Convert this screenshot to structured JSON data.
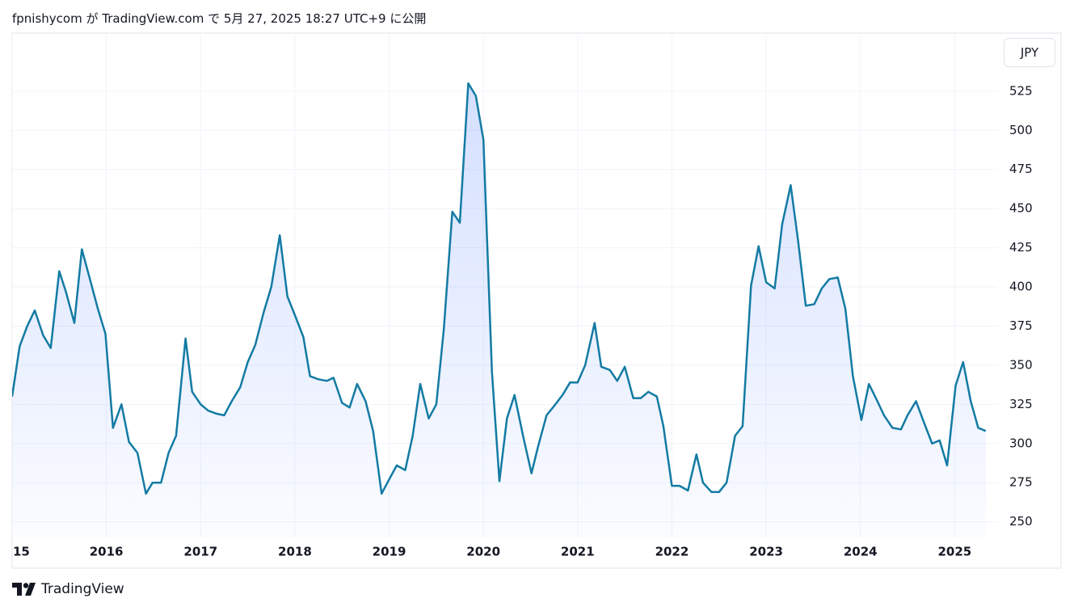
{
  "title": "fpnishycom が TradingView.com で 5月 27, 2025 18:27 UTC+9 に公開",
  "brand": "TradingView",
  "chart_data": {
    "type": "line",
    "currency": "JPY",
    "color": "#137ba3",
    "area": true,
    "grid": true,
    "x": [
      2015.0,
      2015.08,
      2015.16,
      2015.24,
      2015.33,
      2015.41,
      2015.5,
      2015.57,
      2015.66,
      2015.74,
      2015.83,
      2015.91,
      2015.99,
      2016.07,
      2016.16,
      2016.24,
      2016.33,
      2016.42,
      2016.49,
      2016.58,
      2016.66,
      2016.74,
      2016.84,
      2016.91,
      2017.0,
      2017.08,
      2017.17,
      2017.25,
      2017.33,
      2017.42,
      2017.5,
      2017.58,
      2017.67,
      2017.75,
      2017.84,
      2017.92,
      2018.0,
      2018.09,
      2018.16,
      2018.25,
      2018.34,
      2018.41,
      2018.5,
      2018.58,
      2018.66,
      2018.75,
      2018.83,
      2018.92,
      2019.0,
      2019.08,
      2019.17,
      2019.25,
      2019.33,
      2019.42,
      2019.5,
      2019.58,
      2019.67,
      2019.75,
      2019.84,
      2019.92,
      2020.0,
      2020.09,
      2020.17,
      2020.25,
      2020.33,
      2020.42,
      2020.51,
      2020.58,
      2020.67,
      2020.75,
      2020.84,
      2020.92,
      2021.0,
      2021.08,
      2021.18,
      2021.25,
      2021.34,
      2021.42,
      2021.5,
      2021.59,
      2021.67,
      2021.75,
      2021.84,
      2021.91,
      2022.0,
      2022.08,
      2022.17,
      2022.26,
      2022.33,
      2022.42,
      2022.5,
      2022.58,
      2022.67,
      2022.75,
      2022.84,
      2022.92,
      2023.0,
      2023.09,
      2023.17,
      2023.26,
      2023.34,
      2023.42,
      2023.51,
      2023.59,
      2023.67,
      2023.76,
      2023.84,
      2023.92,
      2024.01,
      2024.09,
      2024.18,
      2024.25,
      2024.34,
      2024.43,
      2024.5,
      2024.59,
      2024.67,
      2024.76,
      2024.84,
      2024.92,
      2025.01,
      2025.09,
      2025.17,
      2025.25,
      2025.33
    ],
    "values": [
      330,
      362,
      375,
      385,
      369,
      361,
      410,
      397,
      377,
      424,
      404,
      386,
      370,
      310,
      325,
      301,
      294,
      268,
      275,
      275,
      294,
      305,
      367,
      333,
      325,
      321,
      319,
      318,
      327,
      336,
      352,
      363,
      384,
      400,
      433,
      394,
      382,
      368,
      343,
      341,
      340,
      342,
      326,
      323,
      338,
      327,
      308,
      268,
      277,
      286,
      283,
      305,
      338,
      316,
      325,
      373,
      448,
      441,
      530,
      522,
      494,
      346,
      276,
      316,
      331,
      305,
      281,
      298,
      318,
      324,
      331,
      339,
      339,
      350,
      377,
      349,
      347,
      340,
      349,
      329,
      329,
      333,
      330,
      311,
      273,
      273,
      270,
      293,
      275,
      269,
      269,
      275,
      305,
      311,
      401,
      426,
      403,
      399,
      440,
      465,
      429,
      388,
      389,
      399,
      405,
      406,
      386,
      343,
      315,
      338,
      327,
      318,
      310,
      309,
      318,
      327,
      314,
      300,
      302,
      286,
      337,
      352,
      327,
      310,
      308
    ],
    "xlim": [
      2015,
      2025.46
    ],
    "xticks": [
      {
        "value": 2015,
        "label": "15"
      },
      2016,
      2017,
      2018,
      2019,
      2020,
      2021,
      2022,
      2023,
      2024,
      2025
    ],
    "ylim": [
      240,
      560
    ],
    "yticks": [
      250,
      275,
      300,
      325,
      350,
      375,
      400,
      425,
      450,
      475,
      500,
      525
    ]
  }
}
